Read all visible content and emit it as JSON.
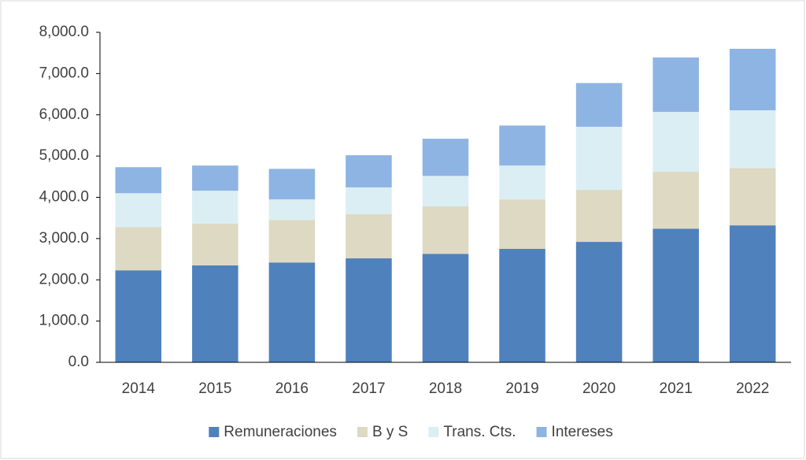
{
  "chart_data": {
    "type": "stacked_bar",
    "categories": [
      "2014",
      "2015",
      "2016",
      "2017",
      "2018",
      "2019",
      "2020",
      "2021",
      "2022"
    ],
    "series": [
      {
        "name": "Remuneraciones",
        "color": "#4f81bd",
        "values": [
          2230,
          2350,
          2420,
          2520,
          2630,
          2750,
          2920,
          3240,
          3320
        ]
      },
      {
        "name": "B y S",
        "color": "#ddd9c3",
        "values": [
          1050,
          1010,
          1030,
          1070,
          1150,
          1200,
          1260,
          1380,
          1390
        ]
      },
      {
        "name": "Trans. Cts.",
        "color": "#dbeef4",
        "values": [
          820,
          800,
          500,
          650,
          740,
          820,
          1530,
          1450,
          1400
        ]
      },
      {
        "name": "Intereses",
        "color": "#8eb4e3",
        "values": [
          630,
          610,
          740,
          780,
          900,
          970,
          1060,
          1320,
          1490
        ]
      }
    ],
    "ylim": [
      0,
      8000
    ],
    "yticks": [
      {
        "value": 0,
        "label": "0.0"
      },
      {
        "value": 1000,
        "label": "1,000.0"
      },
      {
        "value": 2000,
        "label": "2,000.0"
      },
      {
        "value": 3000,
        "label": "3,000.0"
      },
      {
        "value": 4000,
        "label": "4,000.0"
      },
      {
        "value": 5000,
        "label": "5,000.0"
      },
      {
        "value": 6000,
        "label": "6,000.0"
      },
      {
        "value": 7000,
        "label": "7,000.0"
      },
      {
        "value": 8000,
        "label": "8,000.0"
      }
    ],
    "grid": false,
    "legend": "bottom"
  }
}
